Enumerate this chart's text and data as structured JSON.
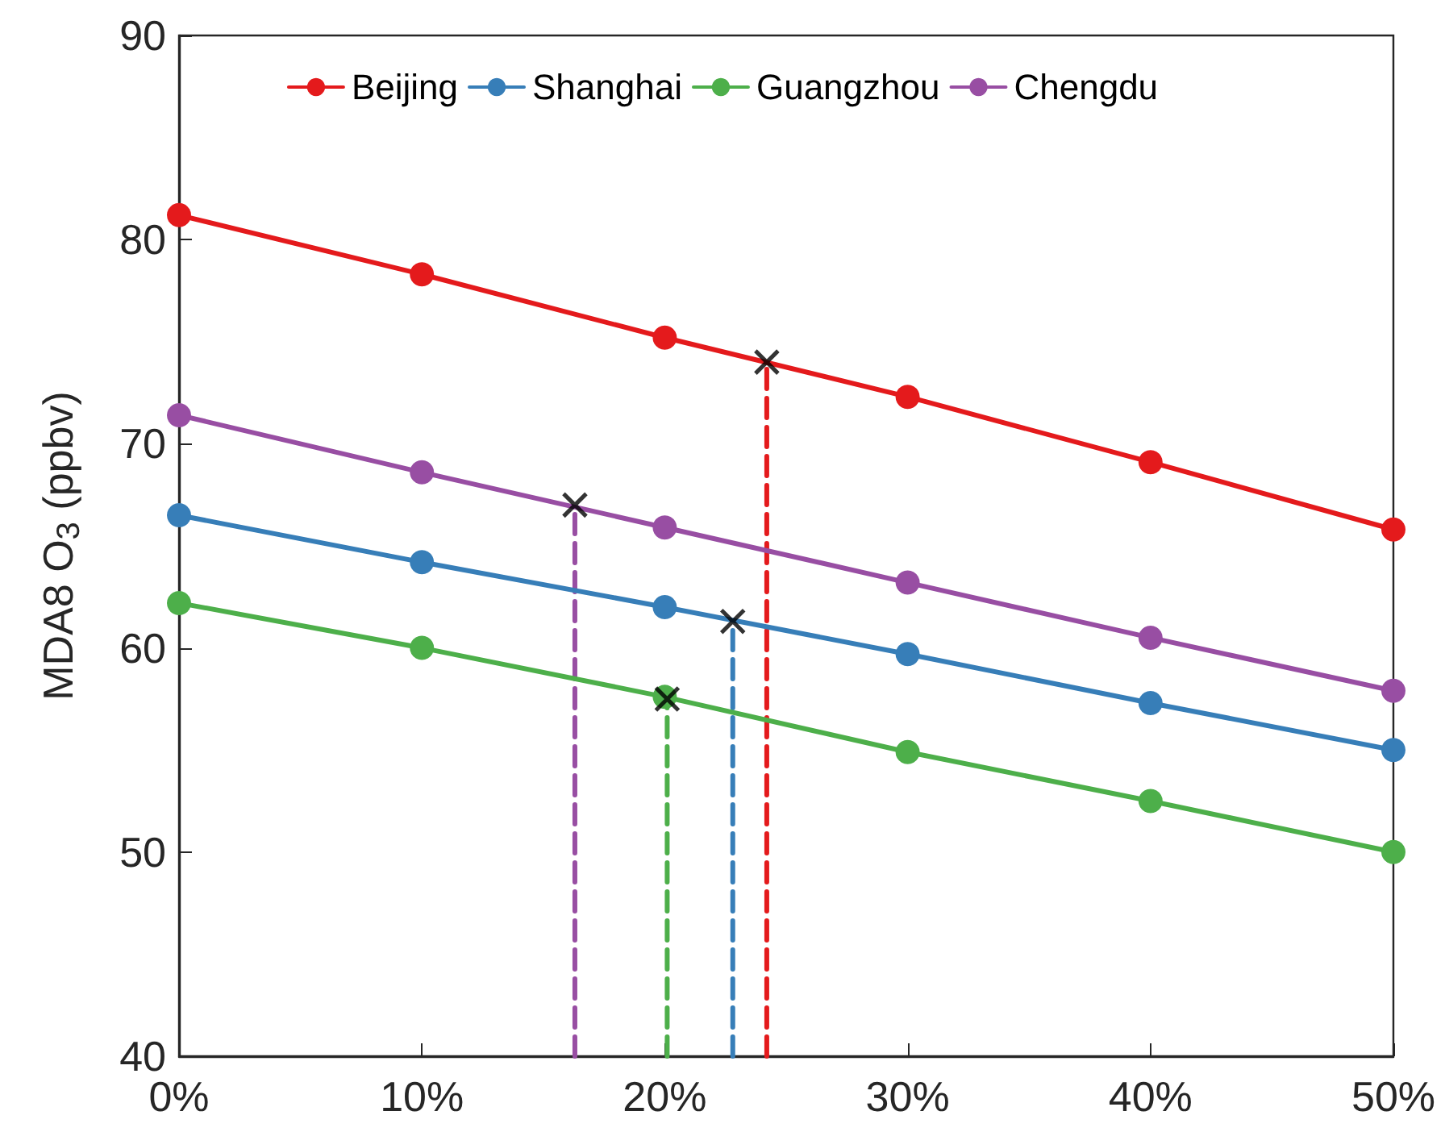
{
  "chart_data": {
    "type": "line",
    "ylabel": "MDA8 O$_{3}$ (ppbv)",
    "x": [
      0,
      10,
      20,
      30,
      40,
      50
    ],
    "xlim": [
      0,
      50
    ],
    "xticks": [
      {
        "value": 0,
        "label": "0%"
      },
      {
        "value": 10,
        "label": "10%"
      },
      {
        "value": 20,
        "label": "20%"
      },
      {
        "value": 30,
        "label": "30%"
      },
      {
        "value": 40,
        "label": "40%"
      },
      {
        "value": 50,
        "label": "50%"
      }
    ],
    "ylim": [
      40,
      90
    ],
    "yticks": [
      40,
      50,
      60,
      70,
      80,
      90
    ],
    "grid": false,
    "legend": "top",
    "marker": "circle",
    "line_style": "solid",
    "series": [
      {
        "name": "Beijing",
        "color": "#e41a1c",
        "values": [
          81.2,
          78.3,
          75.2,
          72.3,
          69.1,
          65.8
        ]
      },
      {
        "name": "Shanghai",
        "color": "#377eb8",
        "values": [
          66.5,
          64.2,
          62.0,
          59.7,
          57.3,
          55.0
        ]
      },
      {
        "name": "Guangzhou",
        "color": "#4daf4a",
        "values": [
          62.2,
          60.0,
          57.6,
          54.9,
          52.5,
          50.0
        ]
      },
      {
        "name": "Chengdu",
        "color": "#984ea3",
        "values": [
          71.4,
          68.6,
          65.9,
          63.2,
          60.5,
          57.9
        ]
      },
      {
        "type": "line",
        "color": "#e41a1c",
        "x": [
          24.2,
          24.2
        ],
        "values": [
          40,
          74.0
        ],
        "line_style": "dashed",
        "marker": "none"
      },
      {
        "type": "line",
        "color": "#377eb8",
        "x": [
          22.8,
          22.8
        ],
        "values": [
          40,
          61.3
        ],
        "line_style": "dashed",
        "marker": "none"
      },
      {
        "type": "line",
        "color": "#4daf4a",
        "x": [
          20.1,
          20.1
        ],
        "values": [
          40,
          57.5
        ],
        "line_style": "dashed",
        "marker": "none"
      },
      {
        "type": "line",
        "color": "#984ea3",
        "x": [
          16.3,
          16.3
        ],
        "values": [
          40,
          67.0
        ],
        "line_style": "dashed",
        "marker": "none"
      },
      {
        "type": "scatter",
        "color": "#000000",
        "x": [
          24.2,
          22.8,
          20.1,
          16.3
        ],
        "values": [
          74.0,
          61.3,
          57.5,
          67.0
        ],
        "marker": "cross"
      }
    ]
  }
}
